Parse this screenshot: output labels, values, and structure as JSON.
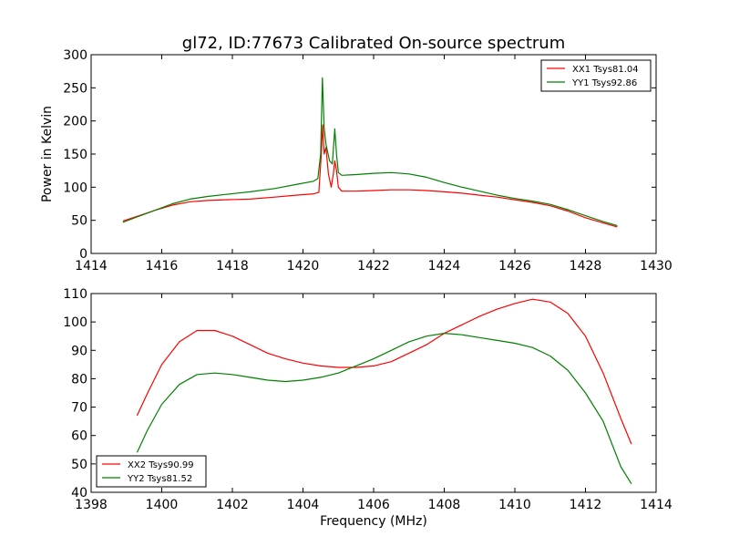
{
  "figure_title": "gl72, ID:77673 Calibrated On-source spectrum",
  "colors": {
    "red": "#ff0000",
    "green": "#008000",
    "frame": "#000000"
  },
  "chart_data": [
    {
      "type": "line",
      "title": "gl72, ID:77673 Calibrated On-source spectrum",
      "xlabel": "",
      "ylabel": "Power in Kelvin",
      "xlim": [
        1414,
        1430
      ],
      "ylim": [
        0,
        300
      ],
      "xticks": [
        1414,
        1416,
        1418,
        1420,
        1422,
        1424,
        1426,
        1428,
        1430
      ],
      "yticks": [
        0,
        50,
        100,
        150,
        200,
        250,
        300
      ],
      "legend_position": "top-right",
      "grid": false,
      "series": [
        {
          "name": "XX1 Tsys81.04",
          "color": "#ff0000",
          "points": [
            [
              1414.9,
              49
            ],
            [
              1415.3,
              56
            ],
            [
              1415.8,
              65
            ],
            [
              1416.3,
              73
            ],
            [
              1416.8,
              78
            ],
            [
              1417.3,
              80
            ],
            [
              1417.8,
              81
            ],
            [
              1418.5,
              82
            ],
            [
              1419.2,
              85
            ],
            [
              1419.8,
              88
            ],
            [
              1420.3,
              90
            ],
            [
              1420.45,
              92
            ],
            [
              1420.52,
              150
            ],
            [
              1420.56,
              194
            ],
            [
              1420.6,
              150
            ],
            [
              1420.65,
              160
            ],
            [
              1420.72,
              120
            ],
            [
              1420.8,
              100
            ],
            [
              1420.86,
              120
            ],
            [
              1420.9,
              140
            ],
            [
              1420.95,
              125
            ],
            [
              1421.0,
              100
            ],
            [
              1421.1,
              94
            ],
            [
              1421.5,
              94
            ],
            [
              1422.0,
              95
            ],
            [
              1422.5,
              96
            ],
            [
              1423.0,
              96
            ],
            [
              1423.5,
              95
            ],
            [
              1424.0,
              93
            ],
            [
              1424.5,
              91
            ],
            [
              1425.0,
              88
            ],
            [
              1425.5,
              85
            ],
            [
              1426.0,
              81
            ],
            [
              1426.5,
              77
            ],
            [
              1427.0,
              72
            ],
            [
              1427.5,
              64
            ],
            [
              1428.0,
              54
            ],
            [
              1428.5,
              46
            ],
            [
              1428.9,
              40
            ]
          ]
        },
        {
          "name": "YY1 Tsys92.86",
          "color": "#008000",
          "points": [
            [
              1414.9,
              47
            ],
            [
              1415.3,
              55
            ],
            [
              1415.8,
              65
            ],
            [
              1416.3,
              75
            ],
            [
              1416.8,
              82
            ],
            [
              1417.3,
              86
            ],
            [
              1417.8,
              89
            ],
            [
              1418.5,
              93
            ],
            [
              1419.2,
              98
            ],
            [
              1419.8,
              104
            ],
            [
              1420.3,
              109
            ],
            [
              1420.42,
              113
            ],
            [
              1420.5,
              150
            ],
            [
              1420.55,
              265
            ],
            [
              1420.6,
              190
            ],
            [
              1420.65,
              165
            ],
            [
              1420.75,
              140
            ],
            [
              1420.83,
              135
            ],
            [
              1420.9,
              188
            ],
            [
              1420.95,
              150
            ],
            [
              1421.0,
              122
            ],
            [
              1421.1,
              118
            ],
            [
              1421.5,
              119
            ],
            [
              1422.0,
              121
            ],
            [
              1422.5,
              122
            ],
            [
              1423.0,
              120
            ],
            [
              1423.5,
              115
            ],
            [
              1424.0,
              107
            ],
            [
              1424.5,
              100
            ],
            [
              1425.0,
              94
            ],
            [
              1425.5,
              88
            ],
            [
              1426.0,
              83
            ],
            [
              1426.5,
              79
            ],
            [
              1427.0,
              74
            ],
            [
              1427.5,
              66
            ],
            [
              1428.0,
              57
            ],
            [
              1428.5,
              48
            ],
            [
              1428.9,
              42
            ]
          ]
        }
      ]
    },
    {
      "type": "line",
      "title": "",
      "xlabel": "Frequency (MHz)",
      "ylabel": "",
      "xlim": [
        1398,
        1414
      ],
      "ylim": [
        40,
        110
      ],
      "xticks": [
        1398,
        1400,
        1402,
        1404,
        1406,
        1408,
        1410,
        1412,
        1414
      ],
      "yticks": [
        40,
        50,
        60,
        70,
        80,
        90,
        100,
        110
      ],
      "legend_position": "bottom-left",
      "grid": false,
      "series": [
        {
          "name": "XX2 Tsys90.99",
          "color": "#ff0000",
          "points": [
            [
              1399.3,
              67
            ],
            [
              1399.6,
              75
            ],
            [
              1400.0,
              85
            ],
            [
              1400.5,
              93
            ],
            [
              1401.0,
              97
            ],
            [
              1401.5,
              97
            ],
            [
              1402.0,
              95
            ],
            [
              1402.5,
              92
            ],
            [
              1403.0,
              89
            ],
            [
              1403.5,
              87
            ],
            [
              1404.0,
              85.5
            ],
            [
              1404.5,
              84.5
            ],
            [
              1405.0,
              84
            ],
            [
              1405.5,
              84
            ],
            [
              1406.0,
              84.5
            ],
            [
              1406.5,
              86
            ],
            [
              1407.0,
              89
            ],
            [
              1407.5,
              92
            ],
            [
              1408.0,
              96
            ],
            [
              1408.5,
              99
            ],
            [
              1409.0,
              102
            ],
            [
              1409.5,
              104.5
            ],
            [
              1410.0,
              106.5
            ],
            [
              1410.5,
              108
            ],
            [
              1411.0,
              107
            ],
            [
              1411.5,
              103
            ],
            [
              1412.0,
              95
            ],
            [
              1412.5,
              82
            ],
            [
              1413.0,
              66
            ],
            [
              1413.3,
              57
            ]
          ]
        },
        {
          "name": "YY2 Tsys81.52",
          "color": "#008000",
          "points": [
            [
              1399.3,
              54
            ],
            [
              1399.6,
              62
            ],
            [
              1400.0,
              71
            ],
            [
              1400.5,
              78
            ],
            [
              1401.0,
              81.5
            ],
            [
              1401.5,
              82
            ],
            [
              1402.0,
              81.5
            ],
            [
              1402.5,
              80.5
            ],
            [
              1403.0,
              79.5
            ],
            [
              1403.5,
              79
            ],
            [
              1404.0,
              79.5
            ],
            [
              1404.5,
              80.5
            ],
            [
              1405.0,
              82
            ],
            [
              1405.5,
              84.5
            ],
            [
              1406.0,
              87
            ],
            [
              1406.5,
              90
            ],
            [
              1407.0,
              93
            ],
            [
              1407.5,
              95
            ],
            [
              1408.0,
              96
            ],
            [
              1408.5,
              95.5
            ],
            [
              1409.0,
              94.5
            ],
            [
              1409.5,
              93.5
            ],
            [
              1410.0,
              92.5
            ],
            [
              1410.5,
              91
            ],
            [
              1411.0,
              88
            ],
            [
              1411.5,
              83
            ],
            [
              1412.0,
              75
            ],
            [
              1412.5,
              65
            ],
            [
              1413.0,
              49
            ],
            [
              1413.3,
              43
            ]
          ]
        }
      ]
    }
  ]
}
